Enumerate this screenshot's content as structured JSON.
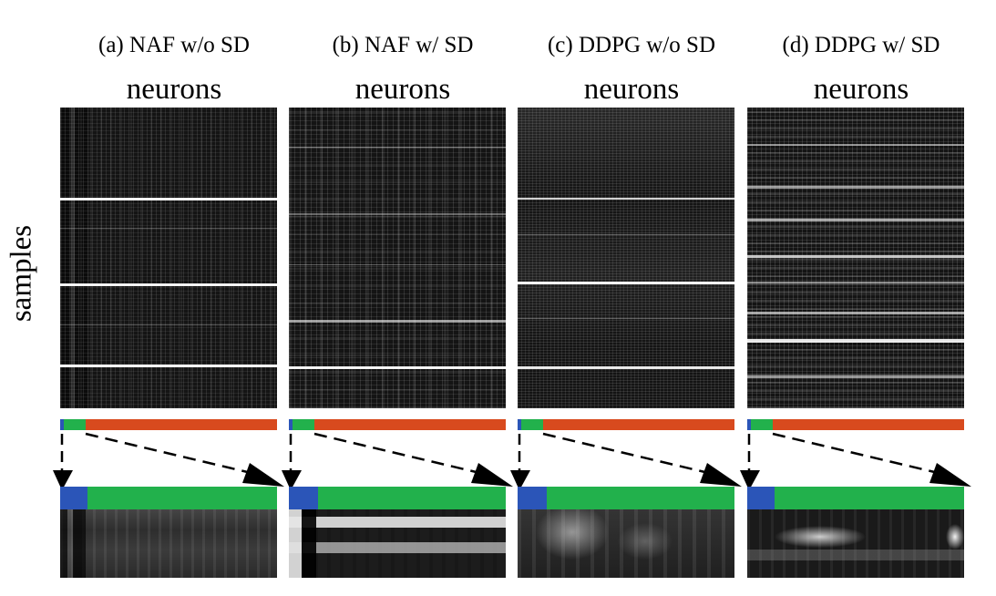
{
  "figure": {
    "ylabel": "samples",
    "colors": {
      "blue": "#2b55b8",
      "green": "#22b14c",
      "orange": "#d84a1e"
    },
    "panels": [
      {
        "id": "a",
        "title": "(a) NAF w/o SD",
        "xlabel": "neurons"
      },
      {
        "id": "b",
        "title": "(b) NAF w/ SD",
        "xlabel": "neurons"
      },
      {
        "id": "c",
        "title": "(c) DDPG w/o SD",
        "xlabel": "neurons"
      },
      {
        "id": "d",
        "title": "(d) DDPG w/ SD",
        "xlabel": "neurons"
      }
    ]
  }
}
